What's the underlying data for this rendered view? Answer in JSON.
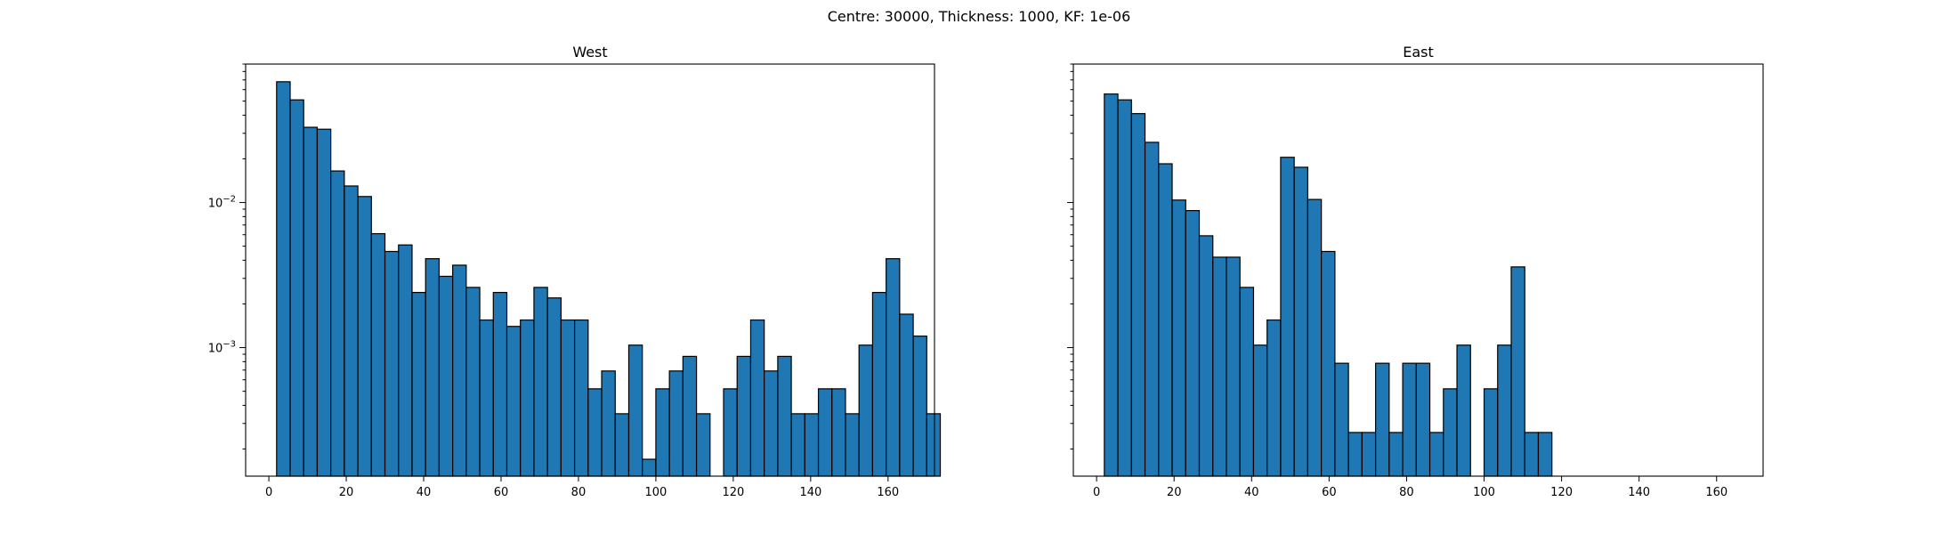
{
  "figure": {
    "suptitle": "Centre: 30000, Thickness: 1000, KF: 1e-06"
  },
  "chart_data": [
    {
      "type": "bar",
      "title": "West",
      "xlabel": "",
      "ylabel": "",
      "yscale": "log",
      "xlim": [
        -6,
        172
      ],
      "ylim": [
        0.00013,
        0.09
      ],
      "xticks": [
        0,
        20,
        40,
        60,
        80,
        100,
        120,
        140,
        160
      ],
      "yticks": [
        0.001,
        0.01
      ],
      "ytick_labels": [
        "10^-3",
        "10^-2"
      ],
      "grid": false,
      "bar_color": "#1f77b4",
      "bin_width": 3.5,
      "bin_start": 2,
      "values": [
        0.068,
        0.051,
        0.033,
        0.032,
        0.0165,
        0.013,
        0.011,
        0.0061,
        0.0046,
        0.0051,
        0.0024,
        0.0041,
        0.0031,
        0.0037,
        0.0026,
        0.00155,
        0.0024,
        0.0014,
        0.00155,
        0.0026,
        0.0022,
        0.00155,
        0.00155,
        0.00052,
        0.00069,
        0.00035,
        0.00104,
        0.00017,
        0.00052,
        0.00069,
        0.00087,
        0.00035,
        0,
        0.00052,
        0.00087,
        0.00155,
        0.00069,
        0.00087,
        0.00035,
        0.00035,
        0.00052,
        0.00052,
        0.00035,
        0.00104,
        0.0024,
        0.0041,
        0.0017,
        0.0012,
        0.00035
      ]
    },
    {
      "type": "bar",
      "title": "East",
      "xlabel": "",
      "ylabel": "",
      "yscale": "log",
      "xlim": [
        -6,
        172
      ],
      "ylim": [
        0.00013,
        0.09
      ],
      "xticks": [
        0,
        20,
        40,
        60,
        80,
        100,
        120,
        140,
        160
      ],
      "yticks": [
        0.001,
        0.01
      ],
      "ytick_labels": [],
      "grid": false,
      "bar_color": "#1f77b4",
      "bin_width": 3.5,
      "bin_start": 2,
      "values": [
        0.056,
        0.051,
        0.041,
        0.026,
        0.0185,
        0.0104,
        0.0088,
        0.0059,
        0.0042,
        0.0042,
        0.0026,
        0.00104,
        0.00155,
        0.0205,
        0.0175,
        0.0105,
        0.0046,
        0.00078,
        0.00026,
        0.00026,
        0.00078,
        0.00026,
        0.00078,
        0.00078,
        0.00026,
        0.00052,
        0.00104,
        0,
        0.00052,
        0.00104,
        0.0036,
        0.00026,
        0.00026
      ]
    }
  ]
}
